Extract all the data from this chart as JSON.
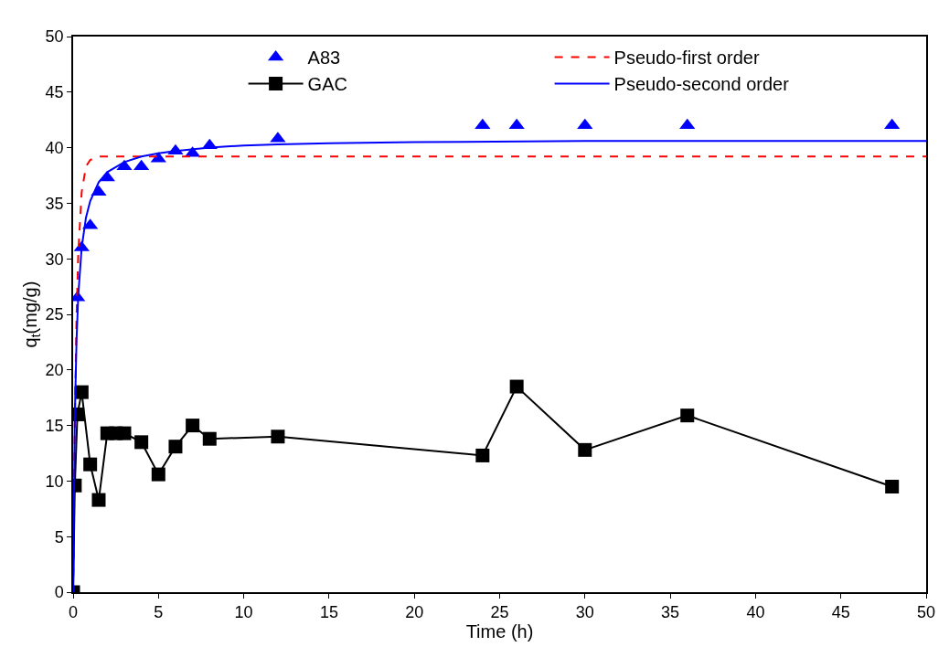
{
  "chart_data": {
    "type": "scatter",
    "xlabel": "Time (h)",
    "ylabel": "q$_{t}$(mg/g)",
    "xlim": [
      0,
      50
    ],
    "ylim": [
      0,
      50
    ],
    "xticks": [
      0,
      5,
      10,
      15,
      20,
      25,
      30,
      35,
      40,
      45,
      {
        "value": 50,
        "label": "50"
      }
    ],
    "yticks": [
      0,
      5,
      10,
      15,
      20,
      25,
      30,
      35,
      40,
      45,
      50
    ],
    "legend": "top",
    "series": [
      {
        "name": "A83",
        "marker": "triangle",
        "color": "#0000ff",
        "x": [
          0.25,
          0.5,
          1,
          1.5,
          2,
          3,
          4,
          5,
          6,
          7,
          8,
          12,
          24,
          26,
          30,
          36,
          48
        ],
        "values": [
          26.5,
          31,
          33,
          36,
          37.3,
          38.3,
          38.3,
          39,
          39.7,
          39.5,
          40.2,
          40.8,
          42,
          42,
          42,
          42,
          42
        ]
      },
      {
        "name": "Pseudo-first order",
        "type": "line",
        "marker": "none",
        "line_style": "dashed",
        "color": "#ff0000",
        "x": [
          0,
          0.1,
          0.2,
          0.3,
          0.5,
          0.75,
          1,
          1.5,
          2,
          5,
          10,
          20,
          30,
          40,
          50
        ],
        "values": [
          0,
          15.4,
          24.8,
          30.5,
          36,
          38.3,
          38.9,
          39.2,
          39.2,
          39.2,
          39.2,
          39.2,
          39.2,
          39.2,
          39.2
        ]
      },
      {
        "name": "GAC",
        "type": "line",
        "marker": "square",
        "line_style": "solid",
        "color": "#000000",
        "x": [
          0,
          0.1,
          0.25,
          0.5,
          1,
          1.5,
          2,
          2.5,
          3,
          4,
          5,
          6,
          7,
          8,
          12,
          24,
          26,
          30,
          36,
          48
        ],
        "values": [
          0,
          9.6,
          16,
          18,
          11.5,
          8.3,
          14.3,
          14.3,
          14.3,
          13.5,
          10.6,
          13.1,
          15,
          13.8,
          14,
          12.3,
          18.5,
          12.8,
          15.9,
          9.5
        ]
      },
      {
        "name": "Pseudo-second order",
        "type": "line",
        "marker": "none",
        "line_style": "solid",
        "color": "#0000ff",
        "x": [
          0,
          0.1,
          0.2,
          0.3,
          0.5,
          0.75,
          1,
          1.5,
          2,
          3,
          4,
          5,
          6,
          8,
          10,
          12,
          15,
          20,
          30,
          40,
          50
        ],
        "values": [
          0,
          15.8,
          22.7,
          26.7,
          31,
          33.7,
          35.2,
          36.9,
          37.8,
          38.7,
          39.2,
          39.5,
          39.7,
          40,
          40.2,
          40.3,
          40.4,
          40.5,
          40.6,
          40.6,
          40.6
        ]
      }
    ]
  }
}
